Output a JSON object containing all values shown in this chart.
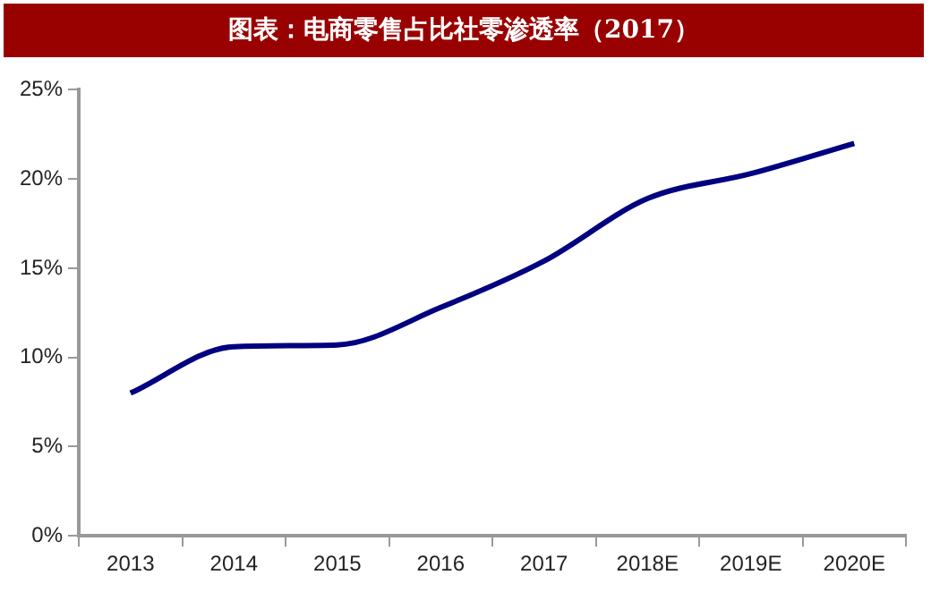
{
  "chart_data": {
    "type": "line",
    "title": "图表：电商零售占比社零渗透率（2017）",
    "categories": [
      "2013",
      "2014",
      "2015",
      "2016",
      "2017",
      "2018E",
      "2019E",
      "2020E"
    ],
    "series": [
      {
        "color": "#000080",
        "values": [
          8,
          10.6,
          10.7,
          12.8,
          15.4,
          18.9,
          20.3,
          22
        ]
      }
    ],
    "ylim": [
      0,
      25
    ],
    "yticks": [
      {
        "value": 0,
        "label": "0%"
      },
      {
        "value": 5,
        "label": "5%"
      },
      {
        "value": 10,
        "label": "10%"
      },
      {
        "value": 15,
        "label": "15%"
      },
      {
        "value": 20,
        "label": "20%"
      },
      {
        "value": 25,
        "label": "25%"
      }
    ],
    "grid": false,
    "legend": false,
    "marker": "none",
    "line_style": "solid"
  }
}
